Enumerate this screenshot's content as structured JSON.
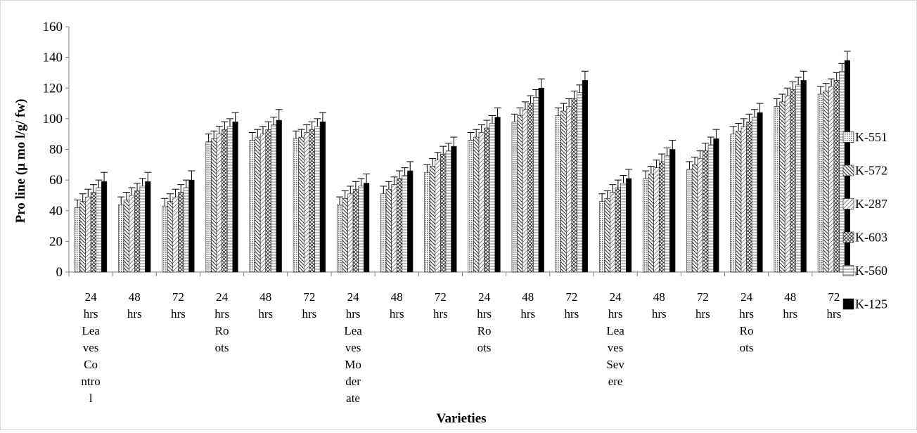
{
  "chart_data": {
    "type": "bar",
    "title": "",
    "xlabel": "Varieties",
    "ylabel": "Pro line (µ mo l/g/ fw)",
    "ylim": [
      0,
      160
    ],
    "yticks": [
      0,
      20,
      40,
      60,
      80,
      100,
      120,
      140,
      160
    ],
    "grid": false,
    "error_bars": true,
    "legend_position": "right",
    "categories": [
      {
        "time": "24 hrs",
        "group": "Lea ves Co ntro l"
      },
      {
        "time": "48 hrs",
        "group": ""
      },
      {
        "time": "72 hrs",
        "group": ""
      },
      {
        "time": "24 hrs",
        "group": "Ro ots"
      },
      {
        "time": "48 hrs",
        "group": ""
      },
      {
        "time": "72 hrs",
        "group": ""
      },
      {
        "time": "24 hrs",
        "group": "Lea ves Mo der ate"
      },
      {
        "time": "48 hrs",
        "group": ""
      },
      {
        "time": "72 hrs",
        "group": ""
      },
      {
        "time": "24 hrs",
        "group": "Ro ots"
      },
      {
        "time": "48 hrs",
        "group": ""
      },
      {
        "time": "72 hrs",
        "group": ""
      },
      {
        "time": "24 hrs",
        "group": "Lea ves Sev ere"
      },
      {
        "time": "48 hrs",
        "group": ""
      },
      {
        "time": "72 hrs",
        "group": ""
      },
      {
        "time": "24 hrs",
        "group": "Ro ots"
      },
      {
        "time": "48 hrs",
        "group": ""
      },
      {
        "time": "72 hrs",
        "group": ""
      }
    ],
    "series": [
      {
        "name": "K-551",
        "pattern": "dots",
        "values": [
          42,
          44,
          43,
          85,
          86,
          87,
          44,
          51,
          65,
          86,
          98,
          102,
          46,
          61,
          67,
          90,
          108,
          116
        ],
        "errors": [
          5,
          5,
          5,
          5,
          5,
          5,
          5,
          5,
          5,
          5,
          5,
          5,
          5,
          5,
          5,
          5,
          5,
          5
        ]
      },
      {
        "name": "K-572",
        "pattern": "diagonal",
        "values": [
          46,
          47,
          46,
          87,
          88,
          88,
          48,
          54,
          69,
          88,
          102,
          105,
          48,
          64,
          70,
          92,
          111,
          118
        ],
        "errors": [
          5,
          5,
          5,
          5,
          5,
          5,
          5,
          5,
          5,
          5,
          5,
          5,
          5,
          5,
          5,
          5,
          5,
          5
        ]
      },
      {
        "name": "K-287",
        "pattern": "light-diagonal",
        "values": [
          49,
          50,
          49,
          90,
          90,
          91,
          51,
          57,
          73,
          91,
          106,
          108,
          52,
          68,
          74,
          95,
          115,
          121
        ],
        "errors": [
          5,
          5,
          5,
          5,
          5,
          5,
          5,
          5,
          5,
          5,
          5,
          5,
          5,
          5,
          5,
          5,
          5,
          5
        ]
      },
      {
        "name": "K-603",
        "pattern": "crosshatch",
        "values": [
          52,
          53,
          52,
          93,
          93,
          93,
          54,
          61,
          77,
          94,
          110,
          113,
          55,
          72,
          79,
          98,
          119,
          125
        ],
        "errors": [
          5,
          5,
          5,
          5,
          5,
          5,
          5,
          5,
          5,
          5,
          5,
          5,
          5,
          5,
          5,
          5,
          5,
          5
        ]
      },
      {
        "name": "K-560",
        "pattern": "horizontal-lines",
        "values": [
          55,
          56,
          55,
          95,
          96,
          95,
          56,
          63,
          79,
          97,
          114,
          117,
          58,
          76,
          83,
          101,
          122,
          131
        ],
        "errors": [
          5,
          5,
          5,
          5,
          5,
          5,
          5,
          5,
          5,
          5,
          5,
          5,
          5,
          5,
          5,
          5,
          5,
          5
        ]
      },
      {
        "name": "K-125",
        "pattern": "solid-black",
        "values": [
          59,
          59,
          60,
          98,
          99,
          98,
          58,
          66,
          82,
          101,
          120,
          125,
          61,
          80,
          87,
          104,
          125,
          138
        ],
        "errors": [
          6,
          6,
          6,
          6,
          7,
          6,
          6,
          6,
          6,
          6,
          6,
          6,
          6,
          6,
          6,
          6,
          6,
          6
        ]
      }
    ]
  }
}
